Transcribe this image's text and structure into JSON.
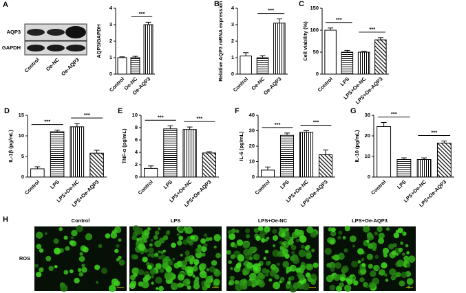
{
  "chart_data": [
    {
      "type": "bar",
      "y_label": "AQP3/GAPDH",
      "categories": [
        "Control",
        "Oe-NC",
        "Oe-AQP3"
      ],
      "values": [
        1.0,
        1.0,
        3.0
      ],
      "errors": [
        0.05,
        0.08,
        0.15
      ],
      "ylim": [
        0,
        4
      ],
      "yticks": [
        0,
        1,
        2,
        3,
        4
      ],
      "color": "#000000",
      "patterns": [
        "none",
        "horizontal",
        "vertical"
      ],
      "annotations": [
        {
          "text": "***",
          "between": [
            "Oe-NC",
            "Oe-AQP3"
          ]
        }
      ]
    },
    {
      "type": "bar",
      "panel": "B",
      "y_label": "Relative AQP3 mRNA expression",
      "categories": [
        "Control",
        "Oe-NC",
        "Oe-AQP3"
      ],
      "values": [
        1.1,
        1.0,
        3.1
      ],
      "errors": [
        0.2,
        0.12,
        0.25
      ],
      "ylim": [
        0,
        4
      ],
      "yticks": [
        0,
        1,
        2,
        3,
        4
      ],
      "color": "#000000",
      "patterns": [
        "none",
        "horizontal",
        "vertical"
      ],
      "annotations": [
        {
          "text": "***",
          "between": [
            "Oe-NC",
            "Oe-AQP3"
          ]
        }
      ]
    },
    {
      "type": "bar",
      "panel": "C",
      "y_label": "Cell viability (%)",
      "categories": [
        "Control",
        "LPS",
        "LPS+Oe-NC",
        "LPS+Oe-AQP3"
      ],
      "values": [
        100,
        50,
        50,
        78
      ],
      "errors": [
        5,
        4,
        2,
        5
      ],
      "ylim": [
        0,
        150
      ],
      "yticks": [
        0,
        50,
        100,
        150
      ],
      "color": "#000000",
      "patterns": [
        "none",
        "horizontal",
        "vertical",
        "diagonal"
      ],
      "annotations": [
        {
          "text": "***",
          "between": [
            "Control",
            "LPS"
          ]
        },
        {
          "text": "***",
          "between": [
            "LPS+Oe-NC",
            "LPS+Oe-AQP3"
          ]
        }
      ]
    },
    {
      "type": "bar",
      "panel": "D",
      "y_label": "IL-1β (pg/mL)",
      "categories": [
        "Control",
        "LPS",
        "LPS+Oe-NC",
        "LPS+Oe-AQP3"
      ],
      "values": [
        2,
        11,
        12.2,
        5.8
      ],
      "errors": [
        0.5,
        0.4,
        0.8,
        0.7
      ],
      "ylim": [
        0,
        15
      ],
      "yticks": [
        0,
        5,
        10,
        15
      ],
      "color": "#000000",
      "patterns": [
        "none",
        "horizontal",
        "vertical",
        "diagonal"
      ],
      "annotations": [
        {
          "text": "***",
          "between": [
            "Control",
            "LPS"
          ]
        },
        {
          "text": "***",
          "between": [
            "LPS+Oe-NC",
            "LPS+Oe-AQP3"
          ]
        }
      ]
    },
    {
      "type": "bar",
      "panel": "E",
      "y_label": "TNF-α (pg/mL)",
      "categories": [
        "Control",
        "LPS",
        "LPS+Oe-NC",
        "LPS+Oe-AQP3"
      ],
      "values": [
        1.4,
        7.8,
        7.7,
        3.9
      ],
      "errors": [
        0.4,
        0.5,
        0.4,
        0.2
      ],
      "ylim": [
        0,
        10
      ],
      "yticks": [
        0,
        2,
        4,
        6,
        8,
        10
      ],
      "color": "#000000",
      "patterns": [
        "none",
        "horizontal",
        "vertical",
        "diagonal"
      ],
      "annotations": [
        {
          "text": "***",
          "between": [
            "Control",
            "LPS"
          ]
        },
        {
          "text": "***",
          "between": [
            "LPS+Oe-NC",
            "LPS+Oe-AQP3"
          ]
        }
      ]
    },
    {
      "type": "bar",
      "panel": "F",
      "y_label": "IL-6 (pg/mL)",
      "categories": [
        "Control",
        "LPS",
        "LPS+Oe-NC",
        "LPS+Oe-AQP3"
      ],
      "values": [
        4.5,
        27,
        29,
        14.5
      ],
      "errors": [
        2,
        1.5,
        1,
        3
      ],
      "ylim": [
        0,
        40
      ],
      "yticks": [
        0,
        10,
        20,
        30,
        40
      ],
      "color": "#000000",
      "patterns": [
        "none",
        "horizontal",
        "vertical",
        "diagonal"
      ],
      "annotations": [
        {
          "text": "***",
          "between": [
            "Control",
            "LPS"
          ]
        },
        {
          "text": "***",
          "between": [
            "LPS+Oe-NC",
            "LPS+Oe-AQP3"
          ]
        }
      ]
    },
    {
      "type": "bar",
      "panel": "G",
      "y_label": "IL-10 (pg/mL)",
      "categories": [
        "Control",
        "LPS",
        "LPS+Oe-NC",
        "LPS+Oe-AQP3"
      ],
      "values": [
        24.5,
        8.5,
        8.5,
        16.5
      ],
      "errors": [
        2,
        0.8,
        0.8,
        1
      ],
      "ylim": [
        0,
        30
      ],
      "yticks": [
        0,
        10,
        20,
        30
      ],
      "color": "#000000",
      "patterns": [
        "none",
        "horizontal",
        "vertical",
        "diagonal"
      ],
      "annotations": [
        {
          "text": "***",
          "between": [
            "Control",
            "LPS"
          ]
        },
        {
          "text": "***",
          "between": [
            "LPS+Oe-NC",
            "LPS+Oe-AQP3"
          ]
        }
      ]
    }
  ],
  "blot": {
    "panel": "A",
    "bands": [
      "AQP3",
      "GAPDH"
    ],
    "lanes": [
      "Control",
      "Oe-NC",
      "Oe-AQP3"
    ]
  },
  "images": {
    "panel": "H",
    "row_label": "ROS",
    "columns": [
      "Control",
      "LPS",
      "LPS+Oe-NC",
      "LPS+Oe-AQP3"
    ]
  }
}
